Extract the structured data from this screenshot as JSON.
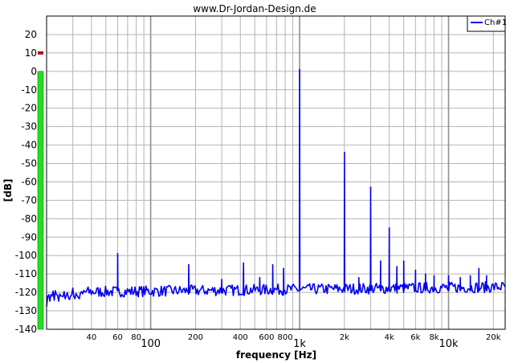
{
  "chart_data": {
    "type": "line",
    "title": "www.Dr-Jordan-Design.de",
    "xlabel": "frequency [Hz]",
    "ylabel": "[dB]",
    "xscale": "log",
    "xlim": [
      20,
      24000
    ],
    "ylim": [
      -140,
      30
    ],
    "grid": true,
    "legend_position": "top-right",
    "y_ticks": [
      20,
      10,
      0,
      -10,
      -20,
      -30,
      -40,
      -50,
      -60,
      -70,
      -80,
      -90,
      -100,
      -110,
      -120,
      -130,
      -140
    ],
    "x_ticks_minor": [
      {
        "value": 40,
        "label": "40"
      },
      {
        "value": 60,
        "label": "60"
      },
      {
        "value": 80,
        "label": "80"
      },
      {
        "value": 200,
        "label": "200"
      },
      {
        "value": 400,
        "label": "400"
      },
      {
        "value": 600,
        "label": "600"
      },
      {
        "value": 800,
        "label": "800"
      },
      {
        "value": 2000,
        "label": "2k"
      },
      {
        "value": 4000,
        "label": "4k"
      },
      {
        "value": 6000,
        "label": "6k"
      },
      {
        "value": 8000,
        "label": "8k"
      },
      {
        "value": 20000,
        "label": "20k"
      }
    ],
    "x_ticks_major": [
      {
        "value": 100,
        "label": "100"
      },
      {
        "value": 1000,
        "label": "1k"
      },
      {
        "value": 10000,
        "label": "10k"
      }
    ],
    "series": [
      {
        "name": "Ch#1",
        "color": "#0000ee",
        "noise_floor_db": -120,
        "noise_floor_rise_db": 3,
        "peaks": [
          {
            "x": 60,
            "y": -99
          },
          {
            "x": 180,
            "y": -105
          },
          {
            "x": 300,
            "y": -113
          },
          {
            "x": 420,
            "y": -104
          },
          {
            "x": 540,
            "y": -112
          },
          {
            "x": 660,
            "y": -105
          },
          {
            "x": 780,
            "y": -107
          },
          {
            "x": 1000,
            "y": 1
          },
          {
            "x": 2000,
            "y": -44
          },
          {
            "x": 2500,
            "y": -112
          },
          {
            "x": 3000,
            "y": -63
          },
          {
            "x": 3500,
            "y": -103
          },
          {
            "x": 4000,
            "y": -85
          },
          {
            "x": 4500,
            "y": -106
          },
          {
            "x": 5000,
            "y": -103
          },
          {
            "x": 6000,
            "y": -108
          },
          {
            "x": 7000,
            "y": -110
          },
          {
            "x": 8000,
            "y": -111
          },
          {
            "x": 10000,
            "y": -111
          },
          {
            "x": 12000,
            "y": -112
          },
          {
            "x": 14000,
            "y": -111
          },
          {
            "x": 16000,
            "y": -107
          },
          {
            "x": 18000,
            "y": -111
          }
        ]
      }
    ],
    "level_meter": {
      "level_db": 0,
      "peak_hold_db": 10,
      "bar_color": "#22dd22",
      "peak_color": "#aa1111"
    }
  }
}
